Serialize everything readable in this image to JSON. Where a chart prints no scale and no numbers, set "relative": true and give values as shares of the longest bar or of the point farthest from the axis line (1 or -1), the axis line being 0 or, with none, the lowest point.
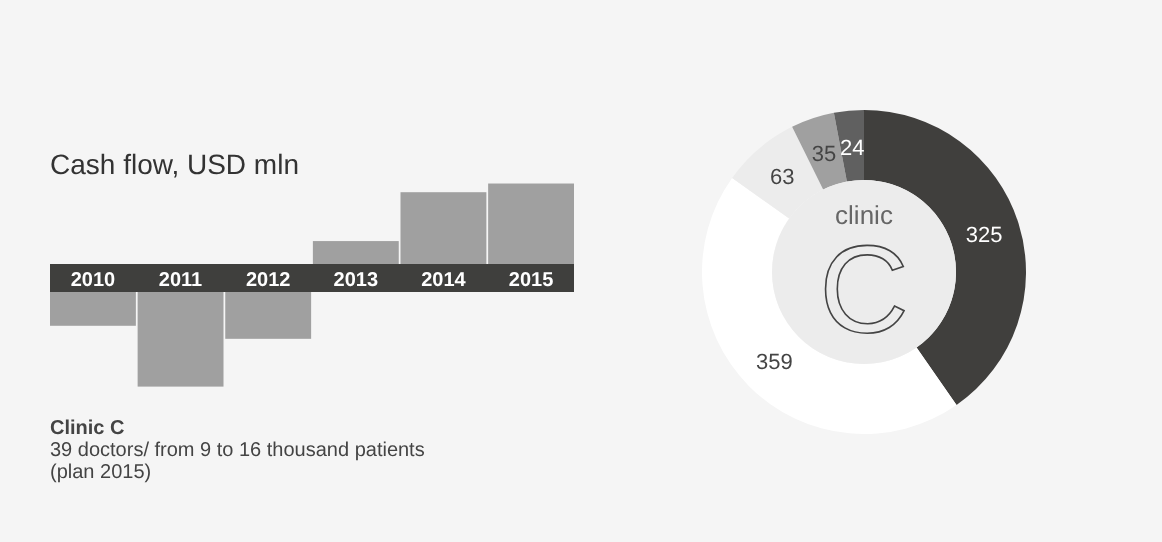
{
  "chart_data": [
    {
      "type": "bar",
      "title": "Cash flow, USD mln",
      "categories": [
        "2010",
        "2011",
        "2012",
        "2013",
        "2014",
        "2015"
      ],
      "values": [
        -0.44,
        -1,
        -0.56,
        0.34,
        0.79,
        0.87
      ],
      "color": "#a0a0a0",
      "relative": true,
      "annotations": [
        "Clinic C",
        "39 doctors/ from 9 to 16 thousand patients",
        "(plan 2015)"
      ]
    },
    {
      "type": "donut",
      "categories": [
        null,
        null,
        null,
        null,
        null
      ],
      "values": [
        325,
        359,
        63,
        35,
        24
      ],
      "colors": [
        "#403f3d",
        "#ffffff",
        "#ececec",
        "#a0a0a0",
        "#606060"
      ],
      "data_labels": true,
      "annotations": [
        "clinic",
        "C"
      ]
    }
  ]
}
